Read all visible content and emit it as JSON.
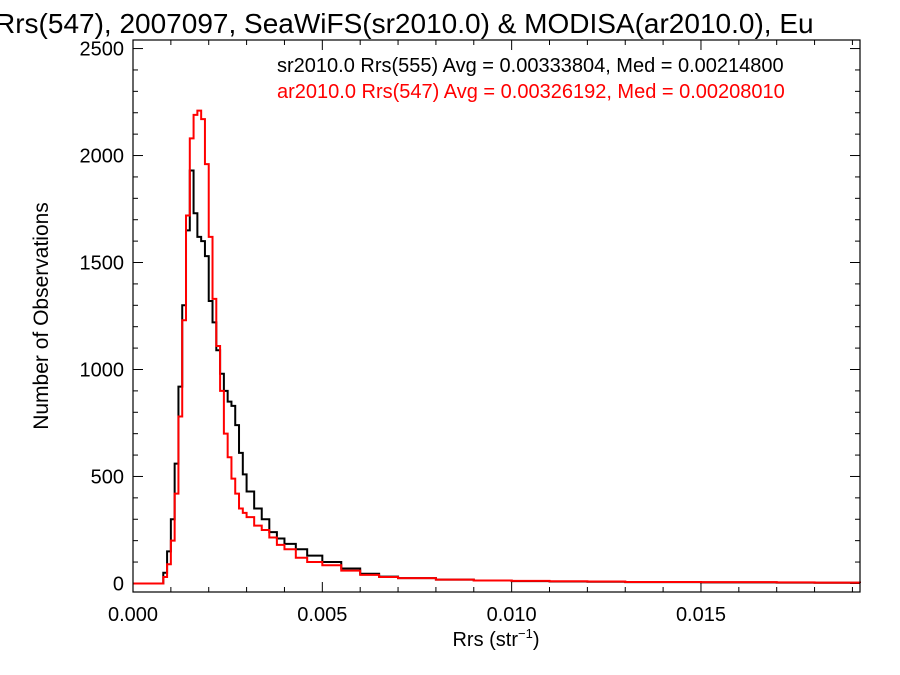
{
  "chart_data": {
    "type": "line",
    "title": "Rrs(547), 2007097, SeaWiFS(sr2010.0) & MODISA(ar2010.0), Eu",
    "xlabel": "Rrs (str",
    "xlabel_sup": "−1",
    "xlabel_close": ")",
    "ylabel": "Number of Observations",
    "xlim": [
      0.0,
      0.0192
    ],
    "ylim": [
      -40,
      2540
    ],
    "x_ticks": [
      0.0,
      0.005,
      0.01,
      0.015
    ],
    "x_tick_labels": [
      "0.000",
      "0.005",
      "0.010",
      "0.015"
    ],
    "y_ticks": [
      0,
      500,
      1000,
      1500,
      2000,
      2500
    ],
    "y_tick_labels": [
      "0",
      "500",
      "1000",
      "1500",
      "2000",
      "2500"
    ],
    "grid": false,
    "legend_placement": "top-right",
    "series": [
      {
        "name": "sr2010.0 Rrs(555) Avg = 0.00333804, Med = 0.00214800",
        "color": "#000000",
        "x": [
          0.0,
          0.0007,
          0.0008,
          0.0009,
          0.001,
          0.0011,
          0.0012,
          0.0013,
          0.0014,
          0.0015,
          0.0016,
          0.0017,
          0.0018,
          0.0019,
          0.002,
          0.0021,
          0.0022,
          0.0023,
          0.0024,
          0.0025,
          0.0026,
          0.0027,
          0.0028,
          0.0029,
          0.003,
          0.0032,
          0.0034,
          0.0036,
          0.0038,
          0.004,
          0.0043,
          0.0046,
          0.005,
          0.0055,
          0.006,
          0.0065,
          0.007,
          0.008,
          0.009,
          0.01,
          0.011,
          0.012,
          0.013,
          0.014,
          0.015,
          0.016,
          0.017,
          0.018,
          0.0192
        ],
        "y": [
          0,
          0,
          50,
          150,
          300,
          560,
          920,
          1300,
          1650,
          1930,
          1730,
          1620,
          1600,
          1530,
          1320,
          1220,
          1090,
          980,
          900,
          850,
          830,
          740,
          610,
          510,
          430,
          350,
          300,
          240,
          210,
          185,
          160,
          130,
          100,
          70,
          45,
          32,
          25,
          18,
          14,
          11,
          9,
          8,
          6,
          6,
          5,
          5,
          4,
          3,
          2
        ]
      },
      {
        "name": "ar2010.0 Rrs(547) Avg = 0.00326192, Med = 0.00208010",
        "color": "#ff0000",
        "x": [
          0.0,
          0.0007,
          0.0008,
          0.0009,
          0.001,
          0.0011,
          0.0012,
          0.0013,
          0.0014,
          0.0015,
          0.0016,
          0.0017,
          0.0018,
          0.0019,
          0.002,
          0.0021,
          0.0022,
          0.0023,
          0.0024,
          0.0025,
          0.0026,
          0.0027,
          0.0028,
          0.0029,
          0.003,
          0.0032,
          0.0034,
          0.0036,
          0.0038,
          0.004,
          0.0043,
          0.0046,
          0.005,
          0.0055,
          0.006,
          0.0065,
          0.007,
          0.008,
          0.009,
          0.01,
          0.011,
          0.012,
          0.013,
          0.014,
          0.015,
          0.016,
          0.017,
          0.018,
          0.0192
        ],
        "y": [
          0,
          0,
          30,
          90,
          200,
          420,
          780,
          1230,
          1720,
          2080,
          2190,
          2210,
          2170,
          1960,
          1620,
          1330,
          1110,
          900,
          700,
          590,
          490,
          420,
          350,
          330,
          310,
          270,
          250,
          215,
          180,
          160,
          120,
          100,
          85,
          60,
          40,
          30,
          25,
          18,
          14,
          12,
          10,
          9,
          7,
          7,
          6,
          6,
          5,
          4,
          3
        ]
      }
    ]
  }
}
